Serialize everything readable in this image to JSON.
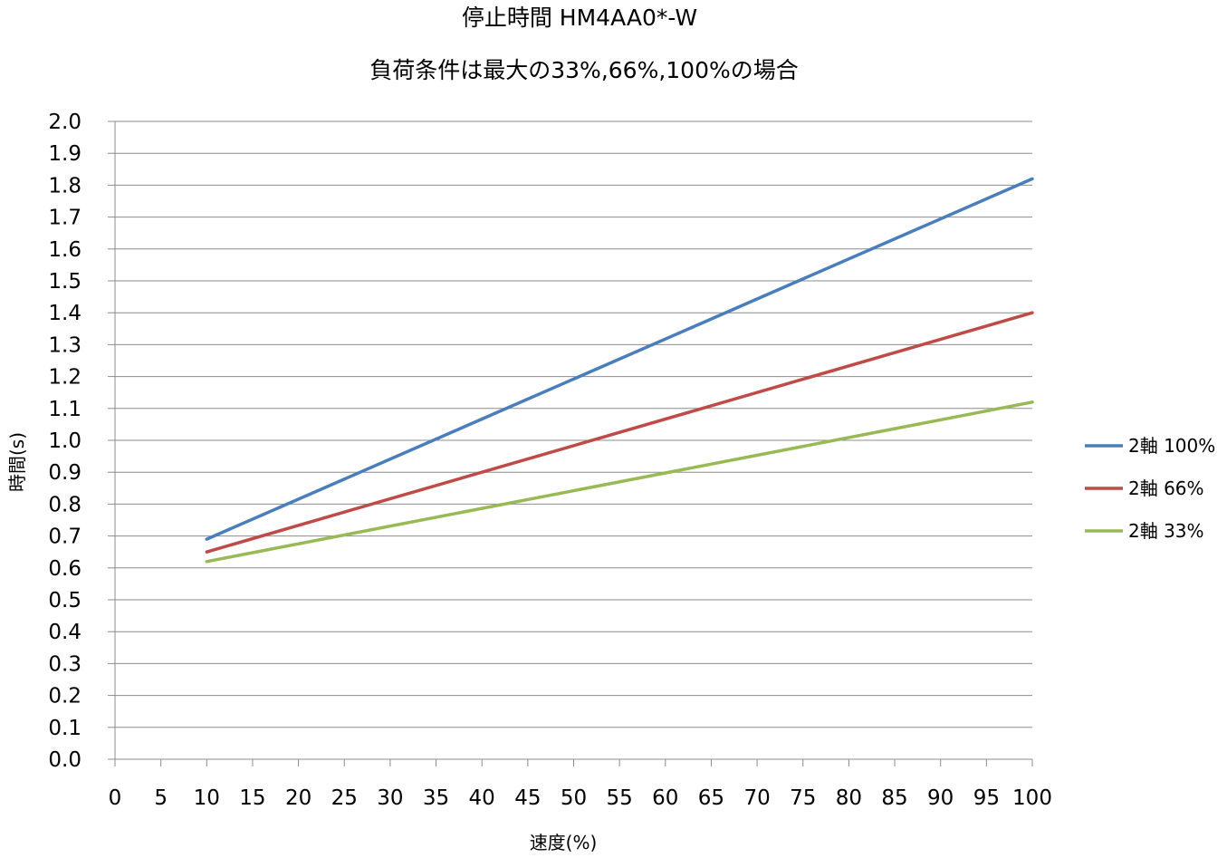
{
  "chart_data": {
    "type": "line",
    "title": "停止時間 HM4AA0*-W",
    "subtitle": "負荷条件は最大の33%,66%,100%の場合",
    "xlabel": "速度(%)",
    "ylabel": "時間(s)",
    "xlim": [
      0,
      100
    ],
    "ylim": [
      0,
      2.0
    ],
    "x_ticks": [
      "0",
      "5",
      "10",
      "15",
      "20",
      "25",
      "30",
      "35",
      "40",
      "45",
      "50",
      "55",
      "60",
      "65",
      "70",
      "75",
      "80",
      "85",
      "90",
      "95",
      "100"
    ],
    "y_ticks": [
      "0.0",
      "0.1",
      "0.2",
      "0.3",
      "0.4",
      "0.5",
      "0.6",
      "0.7",
      "0.8",
      "0.9",
      "1.0",
      "1.1",
      "1.2",
      "1.3",
      "1.4",
      "1.5",
      "1.6",
      "1.7",
      "1.8",
      "1.9",
      "2.0"
    ],
    "grid": true,
    "legend_position": "right",
    "series": [
      {
        "name": "2軸 100%",
        "color": "#4a7ebb",
        "x": [
          10,
          100
        ],
        "y": [
          0.69,
          1.82
        ]
      },
      {
        "name": "2軸 66%",
        "color": "#be4b48",
        "x": [
          10,
          100
        ],
        "y": [
          0.65,
          1.4
        ]
      },
      {
        "name": "2軸 33%",
        "color": "#98b954",
        "x": [
          10,
          100
        ],
        "y": [
          0.62,
          1.12
        ]
      }
    ]
  }
}
